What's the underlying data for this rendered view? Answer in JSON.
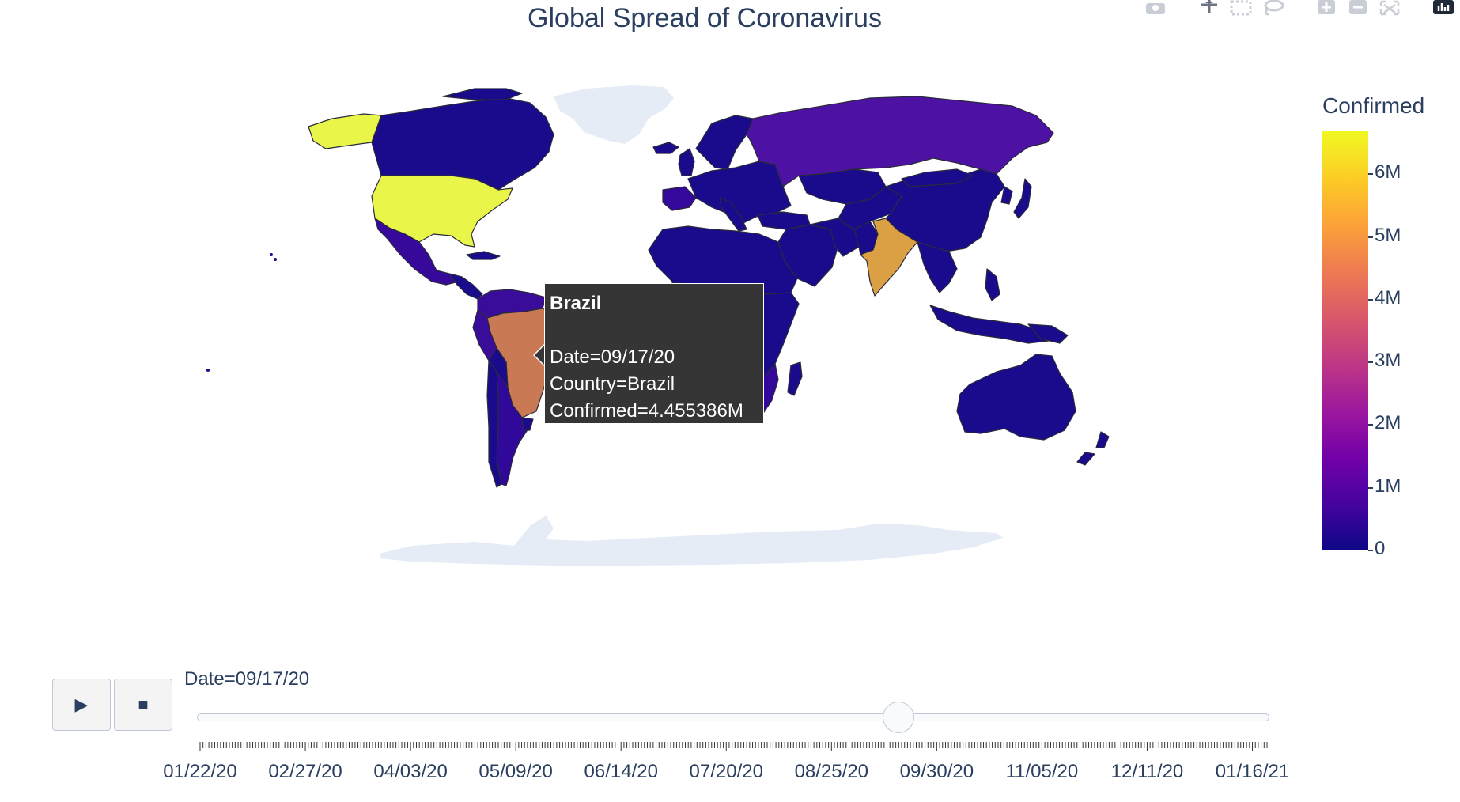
{
  "title": "Global Spread of Coronavirus",
  "modebar": {
    "icons": [
      "camera-icon",
      "pan-icon",
      "box-select-icon",
      "lasso-select-icon",
      "zoom-in-icon",
      "zoom-out-icon",
      "autoscale-icon",
      "plotly-logo-icon"
    ]
  },
  "chart_data": {
    "type": "choropleth",
    "frame_variable": "Date",
    "current_frame": "09/17/20",
    "value_variable": "Confirmed",
    "regions": [
      {
        "name": "United States",
        "value": 6700000,
        "color": "#eaf54a"
      },
      {
        "name": "Brazil",
        "value": 4455386,
        "color": "#c97a55"
      },
      {
        "name": "India",
        "value": 5200000,
        "color": "#dba044"
      },
      {
        "name": "Russia",
        "value": 1080000,
        "color": "#4d12a3"
      },
      {
        "name": "Peru",
        "value": 750000,
        "color": "#3a0c9a"
      },
      {
        "name": "Colombia",
        "value": 740000,
        "color": "#3a0c9a"
      },
      {
        "name": "Mexico",
        "value": 690000,
        "color": "#36099a"
      },
      {
        "name": "South Africa",
        "value": 655000,
        "color": "#33089a"
      },
      {
        "name": "Spain",
        "value": 640000,
        "color": "#33089a"
      },
      {
        "name": "Argentina",
        "value": 600000,
        "color": "#30089a"
      }
    ],
    "colorscale": [
      "#0d0887",
      "#46039f",
      "#7201a8",
      "#9c179e",
      "#bd3786",
      "#d8576b",
      "#ed7953",
      "#fb9f3a",
      "#fdca26",
      "#f0f921"
    ],
    "default_country_color": "#1a0b8c",
    "no_data_color": "#e5ecf6"
  },
  "tooltip": {
    "title": "Brazil",
    "lines": [
      "Date=09/17/20",
      "Country=Brazil",
      "Confirmed=4.455386M"
    ]
  },
  "colorbar": {
    "title": "Confirmed",
    "range": [
      0,
      6700000
    ],
    "ticks": [
      {
        "value": 0,
        "label": "0"
      },
      {
        "value": 1000000,
        "label": "1M"
      },
      {
        "value": 2000000,
        "label": "2M"
      },
      {
        "value": 3000000,
        "label": "3M"
      },
      {
        "value": 4000000,
        "label": "4M"
      },
      {
        "value": 5000000,
        "label": "5M"
      },
      {
        "value": 6000000,
        "label": "6M"
      }
    ]
  },
  "controls": {
    "play_icon": "play-icon",
    "stop_icon": "stop-icon",
    "play_glyph": "▶",
    "stop_glyph": "■"
  },
  "slider": {
    "current_value_label": "Date=09/17/20",
    "start_date": "01/22/20",
    "end_date": "01/21/21",
    "current_date": "09/17/20",
    "step_days": 1,
    "labels": [
      "01/22/20",
      "02/27/20",
      "04/03/20",
      "05/09/20",
      "06/14/20",
      "07/20/20",
      "08/25/20",
      "09/30/20",
      "11/05/20",
      "12/11/20",
      "01/16/21"
    ]
  }
}
